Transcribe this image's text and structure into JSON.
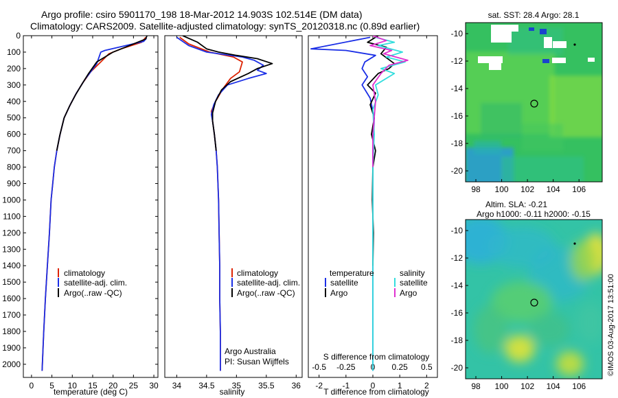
{
  "header": {
    "line1": "Argo profile: csiro 5901170_198 18-Mar-2012 14.903S 102.514E (DM data)",
    "line2": "Climatology: CARS2009. Satellite-adjusted climatology: synTS_20120318.nc (0.89d earlier)"
  },
  "colors": {
    "climatology": "#dd2200",
    "satellite": "#1a2ee6",
    "argo": "#000000",
    "sal_satellite": "#33dddd",
    "sal_argo": "#e030d0"
  },
  "chart_data": [
    {
      "type": "line",
      "panel": "temperature",
      "xlabel": "temperature (deg C)",
      "ylabel": "",
      "xlim": [
        -2,
        31
      ],
      "ylim": [
        2080,
        0
      ],
      "xticks": [
        0,
        5,
        10,
        15,
        20,
        25,
        30
      ],
      "yticks": [
        0,
        100,
        200,
        300,
        400,
        500,
        600,
        700,
        800,
        900,
        1000,
        1100,
        1200,
        1300,
        1400,
        1500,
        1600,
        1700,
        1800,
        1900,
        2000
      ],
      "legend": [
        "climatology",
        "satellite-adj. clim.",
        "Argo(..raw -QC)"
      ],
      "series": [
        {
          "name": "climatology",
          "color": "#dd2200",
          "points": [
            [
              28,
              10
            ],
            [
              27,
              40
            ],
            [
              22,
              80
            ],
            [
              19,
              110
            ],
            [
              17,
              160
            ],
            [
              14.5,
              220
            ],
            [
              12.5,
              290
            ],
            [
              11,
              350
            ],
            [
              9.5,
              420
            ],
            [
              8,
              500
            ],
            [
              7,
              600
            ],
            [
              6.2,
              700
            ],
            [
              5.6,
              800
            ],
            [
              5.2,
              900
            ],
            [
              4.8,
              1000
            ],
            [
              4.4,
              1200
            ],
            [
              3.9,
              1400
            ],
            [
              3.4,
              1600
            ],
            [
              3.0,
              1800
            ],
            [
              2.6,
              2040
            ]
          ]
        },
        {
          "name": "satellite-adj. clim.",
          "color": "#1a2ee6",
          "points": [
            [
              28.2,
              15
            ],
            [
              27.5,
              35
            ],
            [
              18,
              90
            ],
            [
              17,
              100
            ],
            [
              16,
              170
            ],
            [
              14.5,
              220
            ],
            [
              13,
              270
            ],
            [
              11,
              350
            ],
            [
              9.5,
              420
            ],
            [
              8,
              500
            ],
            [
              7,
              600
            ],
            [
              6.2,
              700
            ],
            [
              5.6,
              800
            ],
            [
              5.2,
              900
            ],
            [
              4.8,
              1000
            ],
            [
              4.4,
              1200
            ],
            [
              3.9,
              1400
            ],
            [
              3.4,
              1600
            ],
            [
              3.0,
              1800
            ],
            [
              2.6,
              2040
            ]
          ]
        },
        {
          "name": "Argo(..raw -QC)",
          "color": "#000000",
          "points": [
            [
              28.3,
              0
            ],
            [
              28,
              20
            ],
            [
              24,
              60
            ],
            [
              20,
              100
            ],
            [
              16,
              160
            ],
            [
              14,
              230
            ],
            [
              12.5,
              290
            ],
            [
              10.8,
              360
            ],
            [
              9.3,
              430
            ],
            [
              8,
              500
            ],
            [
              6.9,
              610
            ],
            [
              6.2,
              700
            ]
          ]
        }
      ]
    },
    {
      "type": "line",
      "panel": "salinity",
      "xlabel": "salinity",
      "xlim": [
        33.8,
        36.1
      ],
      "ylim": [
        2080,
        0
      ],
      "xticks": [
        34,
        34.5,
        35,
        35.5,
        36
      ],
      "xticklabels": [
        "34",
        "34.5",
        "35",
        "35.5",
        "36"
      ],
      "legend": [
        "climatology",
        "satellite-adj. clim.",
        "Argo(..raw -QC)"
      ],
      "annotation": [
        "Argo Australia",
        "PI: Susan Wijffels"
      ],
      "series": [
        {
          "name": "climatology",
          "color": "#dd2200",
          "points": [
            [
              34.05,
              10
            ],
            [
              34.2,
              50
            ],
            [
              34.55,
              100
            ],
            [
              34.95,
              130
            ],
            [
              35.1,
              160
            ],
            [
              35.05,
              220
            ],
            [
              34.9,
              260
            ],
            [
              34.78,
              320
            ],
            [
              34.65,
              400
            ],
            [
              34.58,
              460
            ],
            [
              34.6,
              520
            ],
            [
              34.63,
              600
            ],
            [
              34.66,
              700
            ],
            [
              34.68,
              800
            ],
            [
              34.69,
              900
            ],
            [
              34.7,
              1000
            ],
            [
              34.71,
              1200
            ],
            [
              34.72,
              1400
            ],
            [
              34.72,
              1600
            ],
            [
              34.73,
              1800
            ],
            [
              34.73,
              2040
            ]
          ]
        },
        {
          "name": "satellite-adj. clim.",
          "color": "#1a2ee6",
          "points": [
            [
              34.0,
              10
            ],
            [
              34.2,
              60
            ],
            [
              34.5,
              100
            ],
            [
              35.1,
              130
            ],
            [
              35.3,
              150
            ],
            [
              35.45,
              180
            ],
            [
              35.35,
              210
            ],
            [
              35.5,
              230
            ],
            [
              35.2,
              260
            ],
            [
              34.85,
              300
            ],
            [
              34.7,
              360
            ],
            [
              34.62,
              420
            ],
            [
              34.58,
              480
            ],
            [
              34.6,
              520
            ],
            [
              34.63,
              600
            ],
            [
              34.66,
              700
            ],
            [
              34.68,
              800
            ],
            [
              34.69,
              900
            ],
            [
              34.7,
              1000
            ],
            [
              34.71,
              1200
            ],
            [
              34.72,
              1400
            ],
            [
              34.72,
              1600
            ],
            [
              34.73,
              1800
            ],
            [
              34.73,
              2040
            ]
          ]
        },
        {
          "name": "Argo(..raw -QC)",
          "color": "#000000",
          "points": [
            [
              34.1,
              0
            ],
            [
              34.35,
              40
            ],
            [
              34.5,
              80
            ],
            [
              34.7,
              100
            ],
            [
              35.0,
              120
            ],
            [
              35.35,
              140
            ],
            [
              35.6,
              170
            ],
            [
              35.35,
              200
            ],
            [
              35.2,
              230
            ],
            [
              34.9,
              280
            ],
            [
              34.75,
              330
            ],
            [
              34.65,
              400
            ],
            [
              34.6,
              470
            ],
            [
              34.6,
              520
            ],
            [
              34.63,
              600
            ],
            [
              34.66,
              700
            ]
          ]
        }
      ]
    },
    {
      "type": "line",
      "panel": "difference",
      "xlabel": "T difference from climatology",
      "xlabel_top": "S difference from climatology",
      "xlim": [
        -2.4,
        2.4
      ],
      "ylim": [
        2080,
        0
      ],
      "xticks": [
        -2,
        -1,
        0,
        1,
        2
      ],
      "xticklabels": [
        "-2",
        "-1",
        "0",
        "1",
        "2"
      ],
      "xticks_top": [
        -0.5,
        -0.25,
        0,
        0.25,
        0.5
      ],
      "xticklabels_top": [
        "-0.5",
        "-0.25",
        "0",
        "0.25",
        "0.5"
      ],
      "legend": [
        "temperature",
        "satellite",
        "Argo",
        "salinity",
        "satellite",
        "Argo"
      ],
      "series": [
        {
          "name": "satellite",
          "color": "#1a2ee6",
          "points": [
            [
              -0.1,
              10
            ],
            [
              -2.3,
              80
            ],
            [
              -1.0,
              90
            ],
            [
              0.1,
              120
            ],
            [
              -0.3,
              160
            ],
            [
              -0.4,
              200
            ],
            [
              -0.2,
              250
            ],
            [
              -0.4,
              300
            ],
            [
              -0.1,
              380
            ],
            [
              0.05,
              500
            ],
            [
              0,
              700
            ],
            [
              0,
              2040
            ]
          ]
        },
        {
          "name": "Argo",
          "color": "#000000",
          "points": [
            [
              0.2,
              0
            ],
            [
              -0.2,
              40
            ],
            [
              0.5,
              70
            ],
            [
              0.3,
              110
            ],
            [
              0.8,
              170
            ],
            [
              0.6,
              200
            ],
            [
              0.2,
              230
            ],
            [
              -0.2,
              300
            ],
            [
              0.1,
              350
            ],
            [
              -0.1,
              420
            ],
            [
              0.05,
              500
            ],
            [
              -0.05,
              600
            ],
            [
              0.1,
              700
            ],
            [
              0,
              800
            ],
            [
              -0.02,
              1000
            ],
            [
              0.02,
              1200
            ],
            [
              0,
              1400
            ]
          ]
        },
        {
          "name": "salinity satellite",
          "color": "#33dddd",
          "points": [
            [
              0.1,
              10
            ],
            [
              0.8,
              40
            ],
            [
              0.2,
              60
            ],
            [
              1.1,
              100
            ],
            [
              0.5,
              130
            ],
            [
              1.2,
              160
            ],
            [
              0.3,
              200
            ],
            [
              0.8,
              230
            ],
            [
              0.1,
              300
            ],
            [
              0.2,
              360
            ],
            [
              0,
              450
            ],
            [
              0.05,
              600
            ],
            [
              0,
              800
            ],
            [
              0,
              2040
            ]
          ]
        },
        {
          "name": "salinity Argo",
          "color": "#e030d0",
          "points": [
            [
              0.0,
              0
            ],
            [
              0.5,
              30
            ],
            [
              -0.1,
              60
            ],
            [
              0.7,
              90
            ],
            [
              0.4,
              110
            ],
            [
              1.3,
              150
            ],
            [
              0.6,
              180
            ],
            [
              0.3,
              230
            ],
            [
              0,
              300
            ],
            [
              0.1,
              400
            ],
            [
              0,
              600
            ],
            [
              0,
              800
            ]
          ]
        }
      ]
    },
    {
      "type": "heatmap",
      "panel": "sst-map",
      "title": "sat. SST: 28.4  Argo: 28.1",
      "xlim": [
        97.2,
        107.8
      ],
      "ylim": [
        -20.8,
        -9.2
      ],
      "xticks": [
        98,
        100,
        102,
        104,
        106
      ],
      "yticks": [
        -10,
        -12,
        -14,
        -16,
        -18,
        -20
      ],
      "marker": [
        102.5,
        -14.9
      ]
    },
    {
      "type": "heatmap",
      "panel": "sla-map",
      "title": [
        "Altim. SLA: -0.21",
        "Argo h1000: -0.11 h2000: -0.15"
      ],
      "xlim": [
        97.2,
        107.8
      ],
      "ylim": [
        -20.8,
        -9.2
      ],
      "xticks": [
        98,
        100,
        102,
        104,
        106
      ],
      "yticks": [
        -10,
        -12,
        -14,
        -16,
        -18,
        -20
      ],
      "marker": [
        102.5,
        -14.9
      ]
    }
  ],
  "credit": "©IMOS 03-Aug-2017 13:51:00"
}
